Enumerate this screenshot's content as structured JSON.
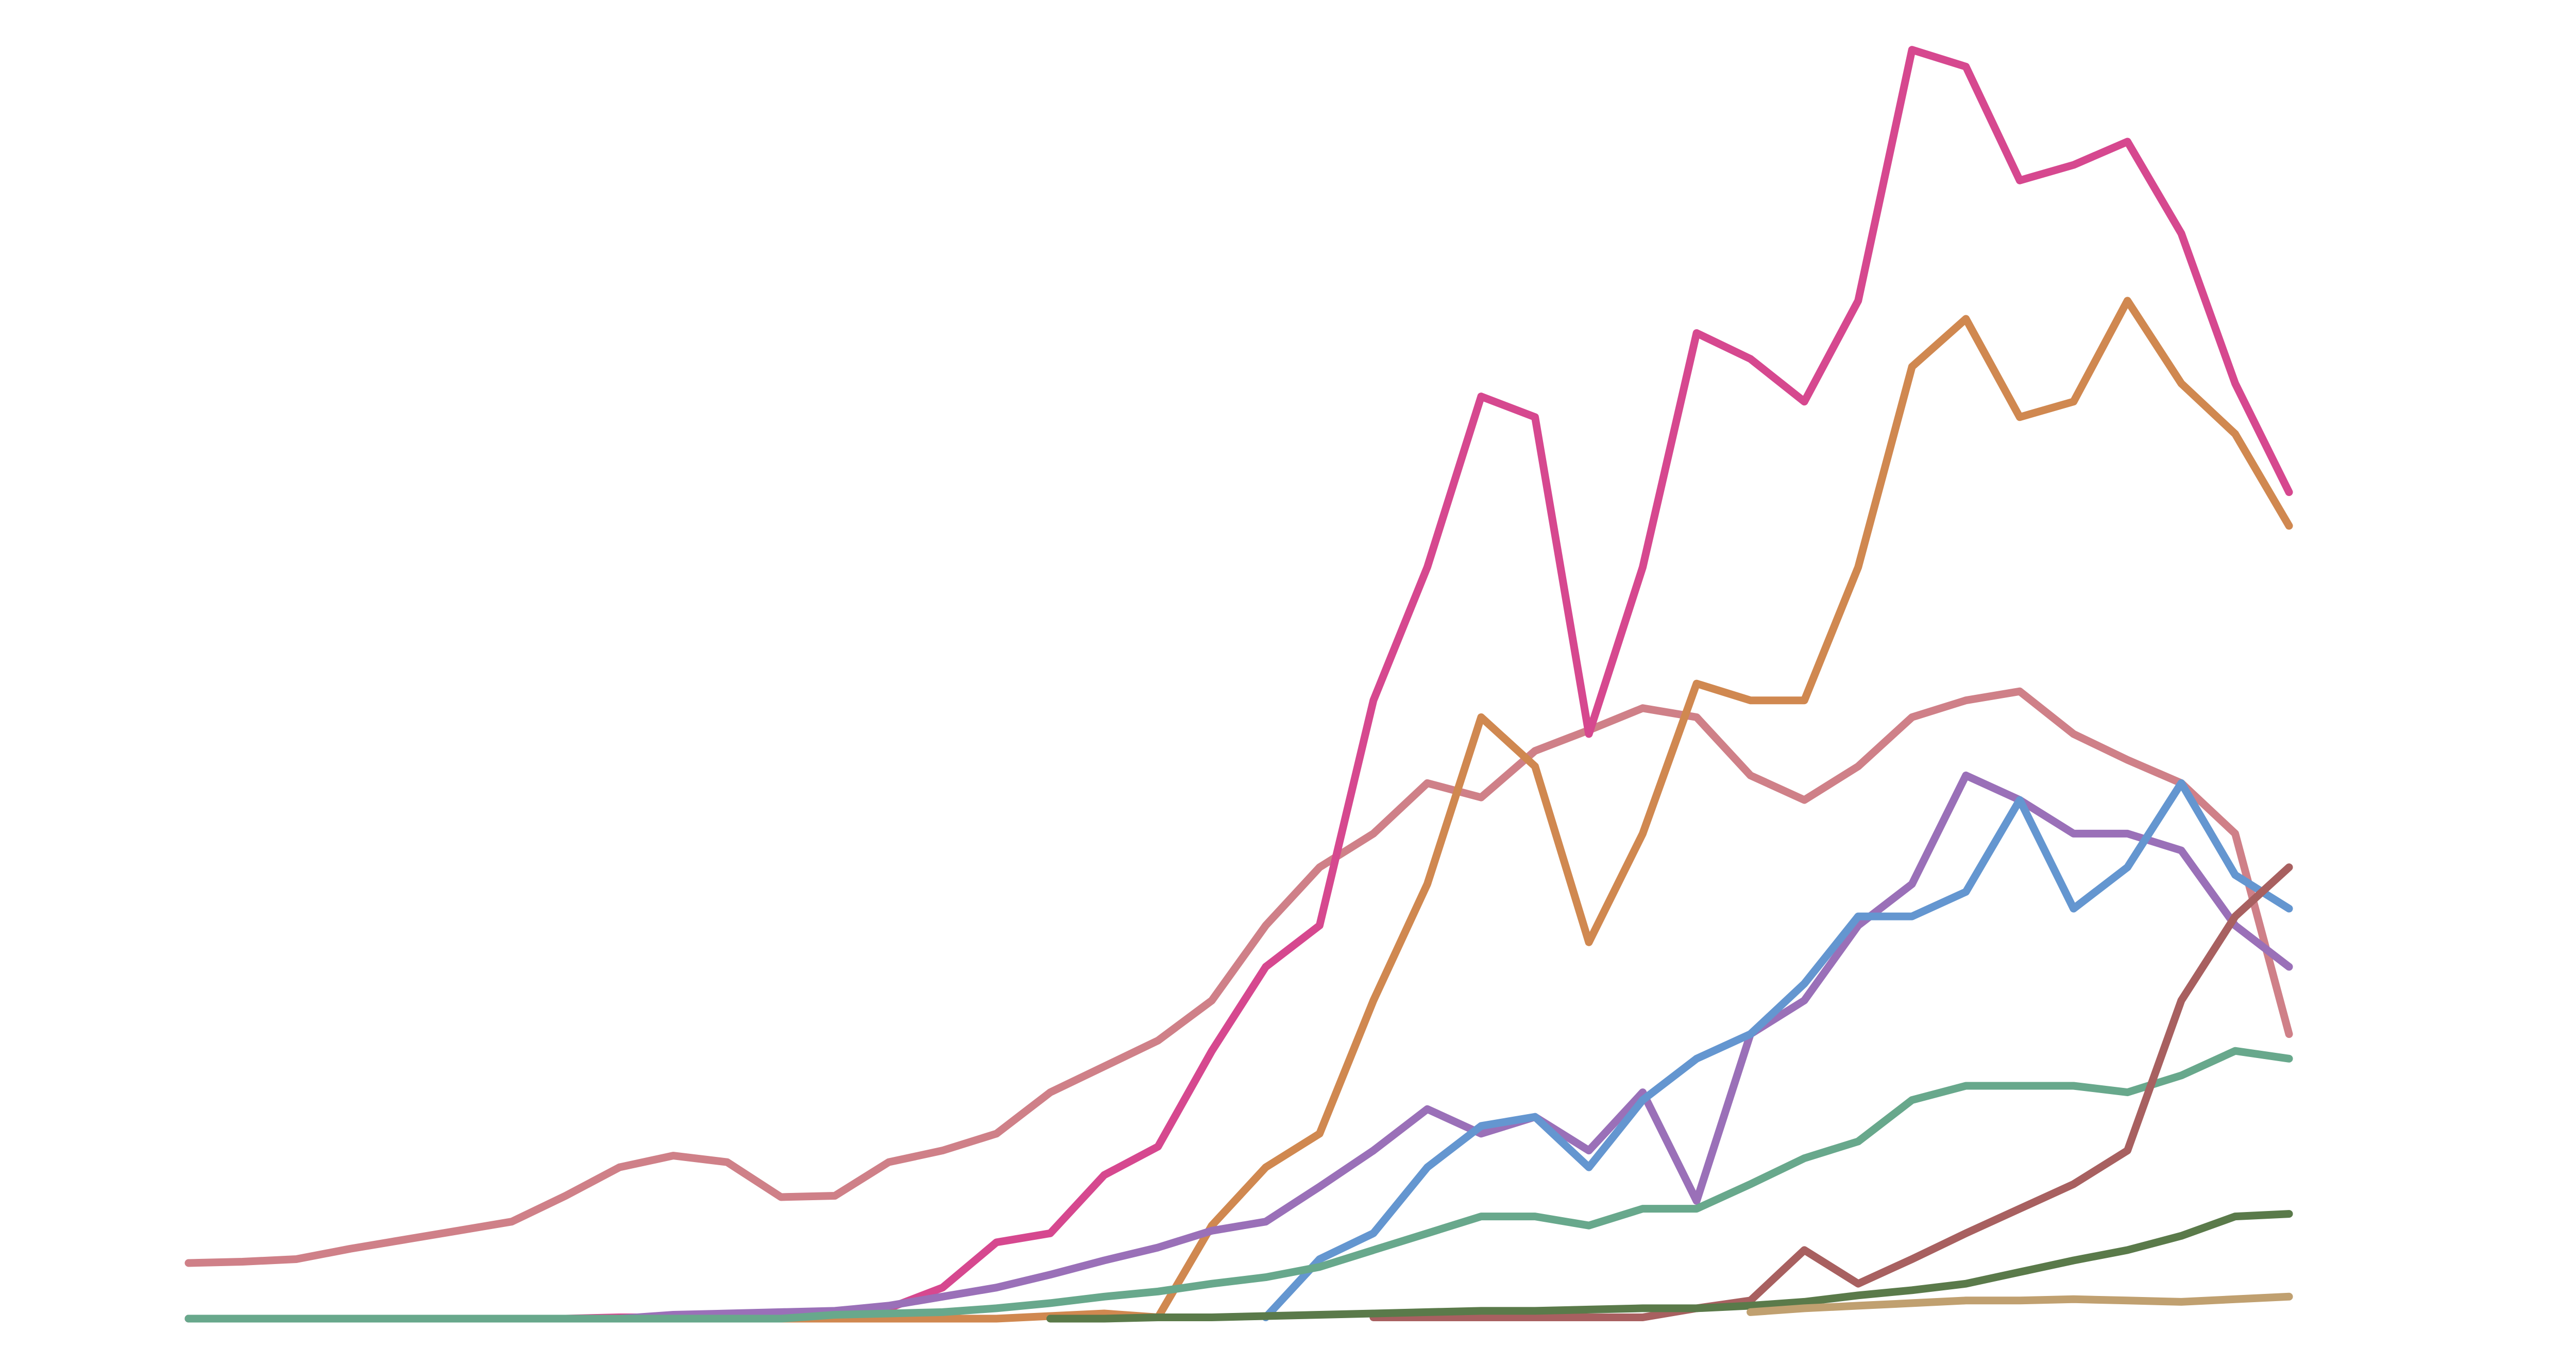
{
  "chart_data": {
    "type": "line",
    "categories": [
      null,
      null,
      null,
      null,
      null,
      null,
      null,
      null,
      null,
      null,
      null,
      null,
      null,
      null,
      null,
      null,
      null,
      null,
      null,
      null,
      null,
      null,
      null,
      null,
      null,
      null,
      null,
      null,
      null,
      null,
      null,
      null,
      null,
      null,
      null,
      null,
      null,
      null,
      null,
      null
    ],
    "ylim": [
      0,
      100
    ],
    "series": [
      {
        "color": "#cf8088",
        "values": [
          4.3,
          4.4,
          4.6,
          5.4,
          6.1,
          6.8,
          7.5,
          9.5,
          11.7,
          12.6,
          12.1,
          9.4,
          9.5,
          12.1,
          13.0,
          14.3,
          17.5,
          19.5,
          21.5,
          24.6,
          30.4,
          34.9,
          37.5,
          41.4,
          40.3,
          43.9,
          45.5,
          47.2,
          46.5,
          42.0,
          40.1,
          42.7,
          46.5,
          47.8,
          48.5,
          45.2,
          43.2,
          41.4,
          37.5,
          22.0
        ]
      },
      {
        "color": "#d6488f",
        "values": [
          0,
          0,
          0,
          0,
          0,
          0,
          0,
          0,
          0.1,
          0.1,
          0.2,
          0.2,
          0.4,
          0.8,
          2.4,
          5.9,
          6.6,
          11.1,
          13.3,
          20.7,
          27.2,
          30.4,
          47.8,
          58.1,
          71.3,
          69.7,
          45.2,
          58.1,
          76.2,
          74.2,
          70.9,
          78.7,
          98.1,
          96.8,
          88.0,
          89.2,
          91.0,
          83.9,
          72.3,
          63.9
        ]
      },
      {
        "color": "#d08850",
        "values": [
          0,
          0,
          0,
          0,
          0,
          0,
          0,
          0,
          0,
          0,
          0,
          0,
          0,
          0,
          0,
          0,
          0.2,
          0.4,
          0.1,
          7.2,
          11.7,
          14.3,
          24.6,
          33.6,
          46.5,
          42.7,
          29.1,
          37.5,
          49.1,
          47.8,
          47.8,
          58.1,
          73.6,
          77.3,
          69.7,
          70.9,
          78.7,
          72.3,
          68.4,
          61.3
        ]
      },
      {
        "color": "#9a70b8",
        "values": [
          0,
          0,
          0,
          0,
          0,
          0,
          0,
          0,
          0,
          0.3,
          0.4,
          0.5,
          0.6,
          1.0,
          1.7,
          2.4,
          3.4,
          4.5,
          5.5,
          6.8,
          7.5,
          10.2,
          13.0,
          16.2,
          14.3,
          15.6,
          13.0,
          17.5,
          9.1,
          22.0,
          24.6,
          30.4,
          33.6,
          42.0,
          40.1,
          37.5,
          37.5,
          36.2,
          30.4,
          27.2
        ]
      },
      {
        "color": "#6496d0",
        "values": [
          null,
          null,
          null,
          null,
          null,
          null,
          null,
          null,
          null,
          null,
          null,
          null,
          null,
          null,
          null,
          null,
          null,
          null,
          null,
          null,
          0.1,
          4.6,
          6.6,
          11.7,
          14.9,
          15.6,
          11.7,
          16.9,
          20.1,
          22.0,
          25.9,
          31.1,
          31.1,
          33.0,
          40.1,
          31.7,
          34.9,
          41.4,
          34.3,
          31.7
        ]
      },
      {
        "color": "#68a88c",
        "values": [
          0,
          0,
          0,
          0,
          0,
          0,
          0,
          0,
          0,
          0,
          0,
          0,
          0.3,
          0.4,
          0.5,
          0.8,
          1.2,
          1.7,
          2.1,
          2.7,
          3.2,
          4.0,
          5.3,
          6.6,
          7.9,
          7.9,
          7.2,
          8.5,
          8.5,
          10.4,
          12.4,
          13.7,
          16.9,
          18.0,
          18.0,
          18.0,
          17.5,
          18.8,
          20.7,
          20.1
        ]
      },
      {
        "color": "#a86060",
        "values": [
          null,
          null,
          null,
          null,
          null,
          null,
          null,
          null,
          null,
          null,
          null,
          null,
          null,
          null,
          null,
          null,
          null,
          null,
          null,
          null,
          null,
          null,
          0.1,
          0.1,
          0.1,
          0.1,
          0.1,
          0.1,
          0.8,
          1.4,
          5.3,
          2.7,
          4.6,
          6.6,
          8.5,
          10.4,
          13.0,
          24.6,
          31.1,
          34.9
        ]
      },
      {
        "color": "#5a7a4a",
        "values": [
          null,
          null,
          null,
          null,
          null,
          null,
          null,
          null,
          null,
          null,
          null,
          null,
          null,
          null,
          null,
          null,
          0,
          0,
          0.1,
          0.1,
          0.2,
          0.3,
          0.4,
          0.5,
          0.6,
          0.6,
          0.7,
          0.8,
          0.8,
          1.0,
          1.3,
          1.8,
          2.2,
          2.7,
          3.6,
          4.5,
          5.3,
          6.4,
          7.9,
          8.1
        ]
      },
      {
        "color": "#c0a070",
        "values": [
          null,
          null,
          null,
          null,
          null,
          null,
          null,
          null,
          null,
          null,
          null,
          null,
          null,
          null,
          null,
          null,
          null,
          null,
          null,
          null,
          null,
          null,
          null,
          null,
          null,
          null,
          null,
          null,
          null,
          0.5,
          0.8,
          1.0,
          1.2,
          1.4,
          1.4,
          1.5,
          1.4,
          1.3,
          1.5,
          1.7
        ]
      }
    ]
  }
}
